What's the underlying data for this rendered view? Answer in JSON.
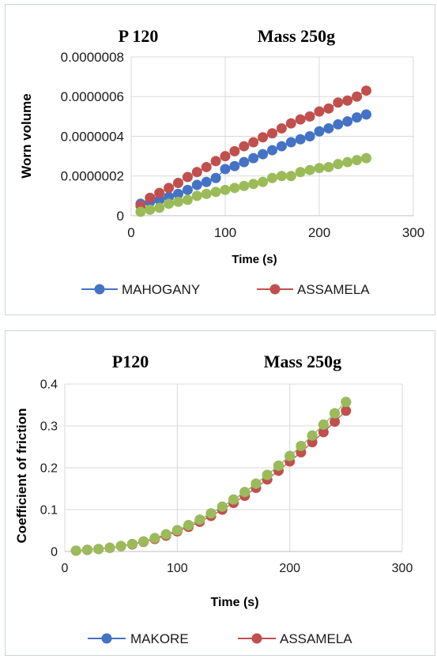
{
  "chart_data": [
    {
      "type": "scatter",
      "title": "P 120",
      "subtitle": "Mass 250g",
      "xlabel": "Time (s)",
      "ylabel": "Worn volume",
      "xlim": [
        0,
        300
      ],
      "ylim": [
        0,
        8e-07
      ],
      "xticks": [
        "0",
        "100",
        "200",
        "300"
      ],
      "yticks": [
        "0",
        "0.0000002",
        "0.0000004",
        "0.0000006",
        "0.0000008"
      ],
      "grid": true,
      "legend": "bottom",
      "series": [
        {
          "name": "MAHOGANY",
          "color": "#4472c4",
          "points": [
            [
              10,
              6e-08
            ],
            [
              20,
              7e-08
            ],
            [
              30,
              8e-08
            ],
            [
              40,
              9.5e-08
            ],
            [
              50,
              1.1e-07
            ],
            [
              60,
              1.3e-07
            ],
            [
              70,
              1.55e-07
            ],
            [
              80,
              1.7e-07
            ],
            [
              90,
              1.9e-07
            ],
            [
              100,
              2.35e-07
            ],
            [
              110,
              2.5e-07
            ],
            [
              120,
              2.7e-07
            ],
            [
              130,
              2.9e-07
            ],
            [
              140,
              3.1e-07
            ],
            [
              150,
              3.3e-07
            ],
            [
              160,
              3.5e-07
            ],
            [
              170,
              3.7e-07
            ],
            [
              180,
              3.85e-07
            ],
            [
              190,
              4e-07
            ],
            [
              200,
              4.25e-07
            ],
            [
              210,
              4.4e-07
            ],
            [
              220,
              4.6e-07
            ],
            [
              230,
              4.75e-07
            ],
            [
              240,
              4.95e-07
            ],
            [
              250,
              5.1e-07
            ]
          ]
        },
        {
          "name": "ASSAMELA",
          "color": "#c0504d",
          "points": [
            [
              10,
              5e-08
            ],
            [
              20,
              9e-08
            ],
            [
              30,
              1.15e-07
            ],
            [
              40,
              1.4e-07
            ],
            [
              50,
              1.65e-07
            ],
            [
              60,
              1.95e-07
            ],
            [
              70,
              2.2e-07
            ],
            [
              80,
              2.45e-07
            ],
            [
              90,
              2.75e-07
            ],
            [
              100,
              3e-07
            ],
            [
              110,
              3.25e-07
            ],
            [
              120,
              3.5e-07
            ],
            [
              130,
              3.7e-07
            ],
            [
              140,
              3.95e-07
            ],
            [
              150,
              4.15e-07
            ],
            [
              160,
              4.4e-07
            ],
            [
              170,
              4.65e-07
            ],
            [
              180,
              4.85e-07
            ],
            [
              190,
              5e-07
            ],
            [
              200,
              5.25e-07
            ],
            [
              210,
              5.4e-07
            ],
            [
              220,
              5.7e-07
            ],
            [
              230,
              5.8e-07
            ],
            [
              240,
              6e-07
            ],
            [
              250,
              6.3e-07
            ]
          ]
        },
        {
          "color": "#9bbb59",
          "points": [
            [
              10,
              2e-08
            ],
            [
              20,
              3e-08
            ],
            [
              30,
              4e-08
            ],
            [
              40,
              6e-08
            ],
            [
              50,
              7e-08
            ],
            [
              60,
              8e-08
            ],
            [
              70,
              1e-07
            ],
            [
              80,
              1.1e-07
            ],
            [
              90,
              1.2e-07
            ],
            [
              100,
              1.3e-07
            ],
            [
              110,
              1.4e-07
            ],
            [
              120,
              1.5e-07
            ],
            [
              130,
              1.6e-07
            ],
            [
              140,
              1.7e-07
            ],
            [
              150,
              1.9e-07
            ],
            [
              160,
              2e-07
            ],
            [
              170,
              2e-07
            ],
            [
              180,
              2.2e-07
            ],
            [
              190,
              2.3e-07
            ],
            [
              200,
              2.4e-07
            ],
            [
              210,
              2.45e-07
            ],
            [
              220,
              2.6e-07
            ],
            [
              230,
              2.7e-07
            ],
            [
              240,
              2.8e-07
            ],
            [
              250,
              2.9e-07
            ]
          ]
        }
      ]
    },
    {
      "type": "scatter",
      "title": "P120",
      "subtitle": "Mass 250g",
      "xlabel": "Time (s)",
      "ylabel": "Coefficient of friction",
      "xlim": [
        0,
        300
      ],
      "ylim": [
        0,
        0.4
      ],
      "xticks": [
        "0",
        "100",
        "200",
        "300"
      ],
      "yticks": [
        "0",
        "0.1",
        "0.2",
        "0.3",
        "0.4"
      ],
      "grid": true,
      "legend": "bottom",
      "series": [
        {
          "name": "MAKORE",
          "color": "#4472c4",
          "points": [
            [
              10,
              0.002
            ],
            [
              20,
              0.004
            ],
            [
              30,
              0.006
            ],
            [
              40,
              0.009
            ],
            [
              50,
              0.013
            ],
            [
              60,
              0.018
            ],
            [
              70,
              0.024
            ],
            [
              80,
              0.032
            ],
            [
              90,
              0.041
            ],
            [
              100,
              0.051
            ],
            [
              110,
              0.063
            ],
            [
              120,
              0.076
            ],
            [
              130,
              0.091
            ],
            [
              140,
              0.107
            ],
            [
              150,
              0.124
            ],
            [
              160,
              0.142
            ],
            [
              170,
              0.162
            ],
            [
              180,
              0.183
            ],
            [
              190,
              0.205
            ],
            [
              200,
              0.228
            ],
            [
              210,
              0.252
            ],
            [
              220,
              0.277
            ],
            [
              230,
              0.303
            ],
            [
              240,
              0.33
            ],
            [
              250,
              0.357
            ]
          ]
        },
        {
          "name": "ASSAMELA",
          "color": "#c0504d",
          "points": [
            [
              10,
              0.002
            ],
            [
              20,
              0.004
            ],
            [
              30,
              0.006
            ],
            [
              40,
              0.009
            ],
            [
              50,
              0.013
            ],
            [
              60,
              0.017
            ],
            [
              70,
              0.023
            ],
            [
              80,
              0.03
            ],
            [
              90,
              0.038
            ],
            [
              100,
              0.048
            ],
            [
              110,
              0.059
            ],
            [
              120,
              0.071
            ],
            [
              130,
              0.085
            ],
            [
              140,
              0.1
            ],
            [
              150,
              0.116
            ],
            [
              160,
              0.133
            ],
            [
              170,
              0.152
            ],
            [
              180,
              0.172
            ],
            [
              190,
              0.193
            ],
            [
              200,
              0.215
            ],
            [
              210,
              0.237
            ],
            [
              220,
              0.261
            ],
            [
              230,
              0.285
            ],
            [
              240,
              0.31
            ],
            [
              250,
              0.336
            ]
          ]
        },
        {
          "color": "#9bbb59",
          "points": [
            [
              10,
              0.002
            ],
            [
              20,
              0.004
            ],
            [
              30,
              0.006
            ],
            [
              40,
              0.009
            ],
            [
              50,
              0.013
            ],
            [
              60,
              0.018
            ],
            [
              70,
              0.024
            ],
            [
              80,
              0.032
            ],
            [
              90,
              0.041
            ],
            [
              100,
              0.051
            ],
            [
              110,
              0.063
            ],
            [
              120,
              0.076
            ],
            [
              130,
              0.091
            ],
            [
              140,
              0.107
            ],
            [
              150,
              0.124
            ],
            [
              160,
              0.142
            ],
            [
              170,
              0.162
            ],
            [
              180,
              0.183
            ],
            [
              190,
              0.205
            ],
            [
              200,
              0.228
            ],
            [
              210,
              0.252
            ],
            [
              220,
              0.277
            ],
            [
              230,
              0.303
            ],
            [
              240,
              0.33
            ],
            [
              250,
              0.357
            ]
          ]
        }
      ]
    }
  ]
}
